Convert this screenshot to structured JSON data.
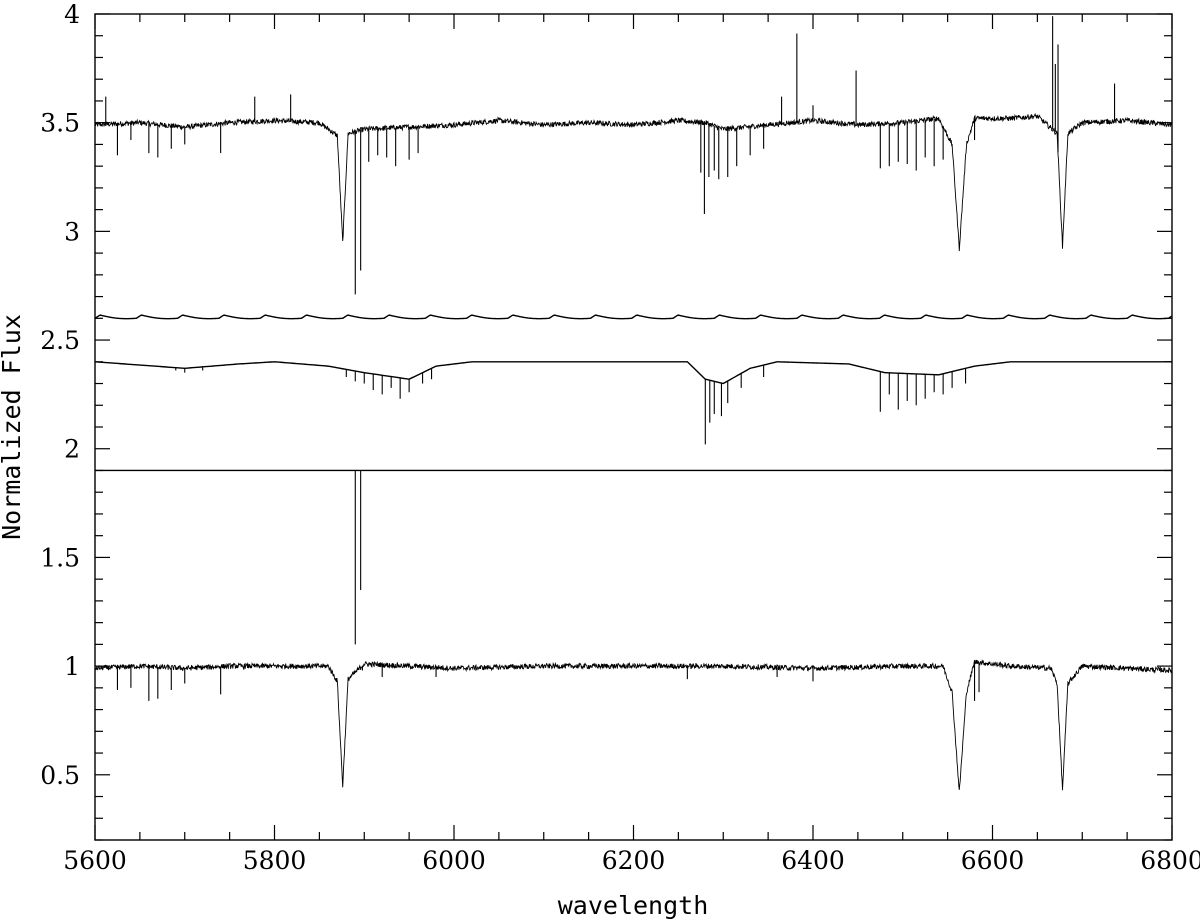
{
  "chart_data": {
    "type": "line",
    "title": "",
    "xlabel": "wavelength",
    "ylabel": "Normalized Flux",
    "xlim": [
      5600,
      6800
    ],
    "ylim": [
      0.2,
      4.0
    ],
    "x_ticks": [
      5600,
      5800,
      6000,
      6200,
      6400,
      6600,
      6800
    ],
    "x_tick_labels": [
      "5600",
      "5800",
      "6000",
      "6200",
      "6400",
      "6600",
      "6800"
    ],
    "y_ticks": [
      0.5,
      1,
      1.5,
      2,
      2.5,
      3,
      3.5,
      4
    ],
    "y_tick_labels": [
      "0.5",
      "1",
      "1.5",
      "2",
      "2.5",
      "3",
      "3.5",
      "4"
    ],
    "grid": false,
    "legend": "none",
    "line_color": "#000000",
    "series": [
      {
        "offset": 3.5,
        "noise": 0.012,
        "points": [
          [
            5600,
            3.49
          ],
          [
            5650,
            3.5
          ],
          [
            5700,
            3.48
          ],
          [
            5750,
            3.5
          ],
          [
            5800,
            3.51
          ],
          [
            5850,
            3.5
          ],
          [
            5870,
            3.44
          ],
          [
            5876,
            2.95
          ],
          [
            5882,
            3.45
          ],
          [
            5900,
            3.47
          ],
          [
            5950,
            3.48
          ],
          [
            6000,
            3.49
          ],
          [
            6050,
            3.51
          ],
          [
            6100,
            3.49
          ],
          [
            6150,
            3.5
          ],
          [
            6200,
            3.49
          ],
          [
            6250,
            3.51
          ],
          [
            6280,
            3.5
          ],
          [
            6300,
            3.47
          ],
          [
            6350,
            3.49
          ],
          [
            6400,
            3.51
          ],
          [
            6450,
            3.49
          ],
          [
            6500,
            3.5
          ],
          [
            6540,
            3.52
          ],
          [
            6555,
            3.4
          ],
          [
            6563,
            2.92
          ],
          [
            6571,
            3.4
          ],
          [
            6580,
            3.52
          ],
          [
            6620,
            3.52
          ],
          [
            6650,
            3.53
          ],
          [
            6672,
            3.45
          ],
          [
            6678,
            2.93
          ],
          [
            6684,
            3.45
          ],
          [
            6700,
            3.5
          ],
          [
            6750,
            3.51
          ],
          [
            6800,
            3.49
          ]
        ],
        "lines": [
          [
            5612,
            3.62
          ],
          [
            5625,
            3.35
          ],
          [
            5640,
            3.42
          ],
          [
            5660,
            3.36
          ],
          [
            5670,
            3.34
          ],
          [
            5685,
            3.38
          ],
          [
            5700,
            3.4
          ],
          [
            5740,
            3.36
          ],
          [
            5778,
            3.62
          ],
          [
            5818,
            3.63
          ],
          [
            5890,
            2.71
          ],
          [
            5896,
            2.82
          ],
          [
            5905,
            3.32
          ],
          [
            5915,
            3.35
          ],
          [
            5925,
            3.34
          ],
          [
            5935,
            3.3
          ],
          [
            5950,
            3.33
          ],
          [
            5960,
            3.36
          ],
          [
            6275,
            3.27
          ],
          [
            6279,
            3.08
          ],
          [
            6284,
            3.25
          ],
          [
            6290,
            3.28
          ],
          [
            6295,
            3.24
          ],
          [
            6305,
            3.25
          ],
          [
            6315,
            3.3
          ],
          [
            6330,
            3.35
          ],
          [
            6345,
            3.38
          ],
          [
            6365,
            3.62
          ],
          [
            6382,
            3.91
          ],
          [
            6400,
            3.58
          ],
          [
            6448,
            3.74
          ],
          [
            6475,
            3.29
          ],
          [
            6485,
            3.3
          ],
          [
            6495,
            3.32
          ],
          [
            6505,
            3.31
          ],
          [
            6515,
            3.28
          ],
          [
            6525,
            3.34
          ],
          [
            6535,
            3.3
          ],
          [
            6545,
            3.33
          ],
          [
            6580,
            3.42
          ],
          [
            6667,
            3.99
          ],
          [
            6670,
            3.77
          ],
          [
            6673,
            3.86
          ],
          [
            6736,
            3.68
          ]
        ]
      },
      {
        "offset": 2.6,
        "noise": 0,
        "pattern": "sawtooth",
        "period": 46,
        "amplitude": 0.03,
        "points": []
      },
      {
        "offset": 2.4,
        "noise": 0,
        "points": [
          [
            5600,
            2.4
          ],
          [
            5700,
            2.37
          ],
          [
            5760,
            2.39
          ],
          [
            5800,
            2.4
          ],
          [
            5860,
            2.38
          ],
          [
            5900,
            2.35
          ],
          [
            5950,
            2.32
          ],
          [
            5980,
            2.38
          ],
          [
            6020,
            2.4
          ],
          [
            6260,
            2.4
          ],
          [
            6280,
            2.32
          ],
          [
            6300,
            2.3
          ],
          [
            6330,
            2.37
          ],
          [
            6360,
            2.4
          ],
          [
            6440,
            2.39
          ],
          [
            6480,
            2.35
          ],
          [
            6540,
            2.34
          ],
          [
            6580,
            2.38
          ],
          [
            6620,
            2.4
          ],
          [
            6800,
            2.4
          ]
        ],
        "lines": [
          [
            5690,
            2.36
          ],
          [
            5700,
            2.35
          ],
          [
            5720,
            2.36
          ],
          [
            5880,
            2.33
          ],
          [
            5890,
            2.31
          ],
          [
            5900,
            2.3
          ],
          [
            5910,
            2.27
          ],
          [
            5920,
            2.25
          ],
          [
            5930,
            2.28
          ],
          [
            5940,
            2.23
          ],
          [
            5950,
            2.26
          ],
          [
            5965,
            2.3
          ],
          [
            5975,
            2.32
          ],
          [
            6280,
            2.02
          ],
          [
            6285,
            2.12
          ],
          [
            6290,
            2.16
          ],
          [
            6298,
            2.15
          ],
          [
            6305,
            2.21
          ],
          [
            6320,
            2.28
          ],
          [
            6345,
            2.33
          ],
          [
            6475,
            2.17
          ],
          [
            6485,
            2.25
          ],
          [
            6495,
            2.18
          ],
          [
            6505,
            2.22
          ],
          [
            6515,
            2.2
          ],
          [
            6525,
            2.23
          ],
          [
            6535,
            2.26
          ],
          [
            6545,
            2.25
          ],
          [
            6555,
            2.28
          ],
          [
            6570,
            2.3
          ]
        ]
      },
      {
        "offset": 1.9,
        "noise": 0,
        "points": [
          [
            5600,
            1.9
          ],
          [
            6800,
            1.9
          ]
        ],
        "lines": [
          [
            5890,
            1.1
          ],
          [
            5896,
            1.35
          ]
        ]
      },
      {
        "offset": 1.0,
        "noise": 0.012,
        "points": [
          [
            5600,
            0.99
          ],
          [
            5650,
            1.0
          ],
          [
            5700,
            0.99
          ],
          [
            5750,
            1.0
          ],
          [
            5800,
            1.0
          ],
          [
            5860,
            1.0
          ],
          [
            5870,
            0.93
          ],
          [
            5876,
            0.45
          ],
          [
            5882,
            0.94
          ],
          [
            5900,
            1.01
          ],
          [
            5950,
            1.0
          ],
          [
            6000,
            0.99
          ],
          [
            6100,
            1.0
          ],
          [
            6200,
            1.0
          ],
          [
            6300,
            1.0
          ],
          [
            6400,
            0.99
          ],
          [
            6500,
            1.0
          ],
          [
            6545,
            1.0
          ],
          [
            6555,
            0.88
          ],
          [
            6563,
            0.42
          ],
          [
            6571,
            0.88
          ],
          [
            6580,
            1.02
          ],
          [
            6620,
            1.0
          ],
          [
            6665,
            0.99
          ],
          [
            6672,
            0.92
          ],
          [
            6678,
            0.43
          ],
          [
            6684,
            0.92
          ],
          [
            6700,
            1.0
          ],
          [
            6800,
            0.98
          ]
        ],
        "lines": [
          [
            5625,
            0.89
          ],
          [
            5640,
            0.9
          ],
          [
            5660,
            0.84
          ],
          [
            5670,
            0.85
          ],
          [
            5685,
            0.89
          ],
          [
            5700,
            0.92
          ],
          [
            5740,
            0.87
          ],
          [
            5898,
            0.98
          ],
          [
            5920,
            0.95
          ],
          [
            5980,
            0.95
          ],
          [
            6260,
            0.94
          ],
          [
            6360,
            0.95
          ],
          [
            6400,
            0.93
          ],
          [
            6580,
            0.84
          ],
          [
            6585,
            0.88
          ]
        ]
      }
    ]
  }
}
